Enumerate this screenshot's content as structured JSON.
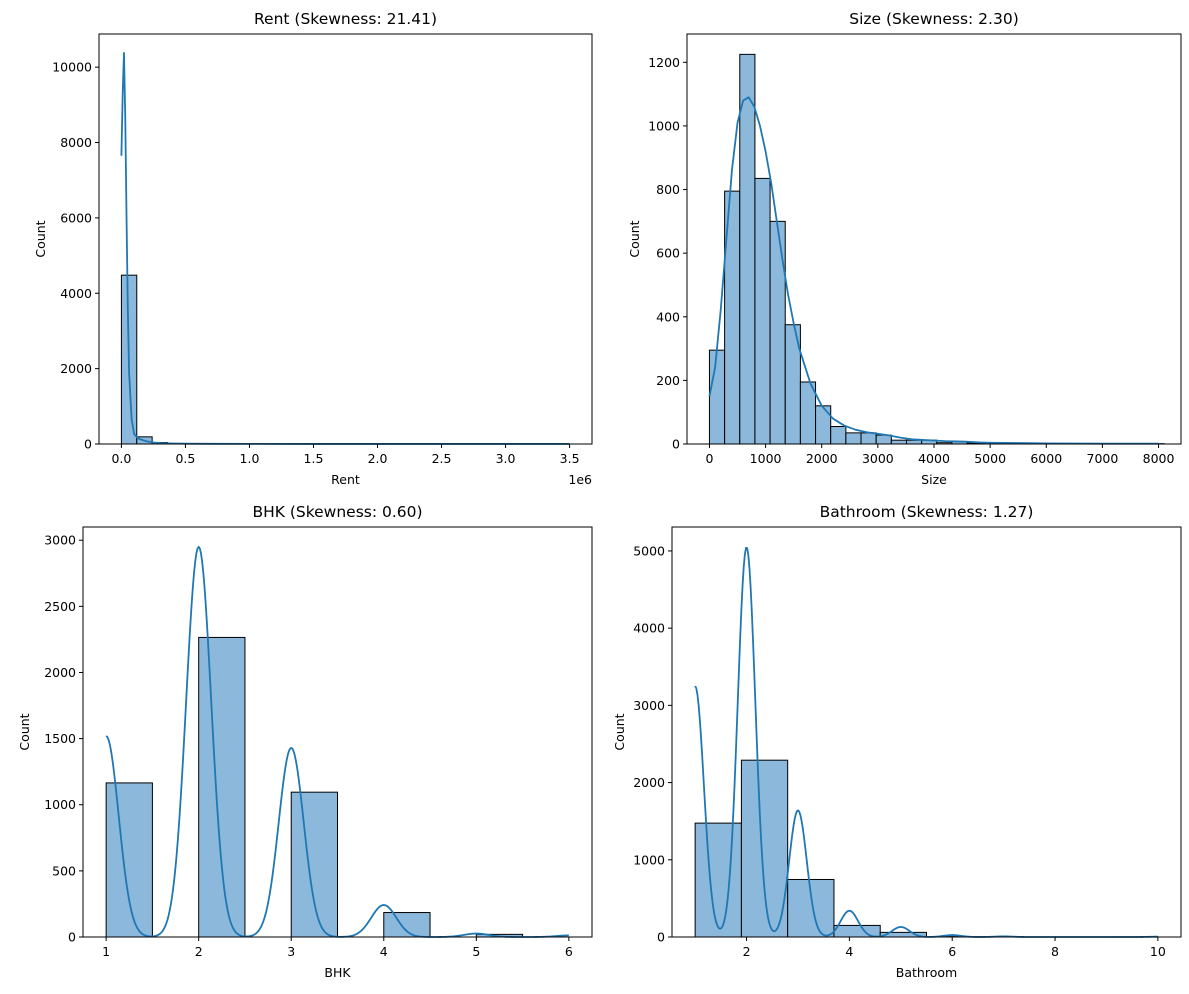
{
  "figure": {
    "description_bg": "#ffffff",
    "bar_fill": "#8bb8db",
    "bar_edge": "#000000",
    "kde_color": "#1f77b4"
  },
  "chart_data": [
    {
      "type": "bar",
      "name": "rent",
      "title": "Rent (Skewness: 21.41)",
      "xlabel": "Rent",
      "ylabel": "Count",
      "offset_text": "1e6",
      "xlim": [
        -0.175,
        3.675
      ],
      "ylim": [
        0,
        10880
      ],
      "xticks": [
        0,
        0.5,
        1.0,
        1.5,
        2.0,
        2.5,
        3.0,
        3.5
      ],
      "xtick_labels": [
        "0.0",
        "0.5",
        "1.0",
        "1.5",
        "2.0",
        "2.5",
        "3.0",
        "3.5"
      ],
      "yticks": [
        0,
        2000,
        4000,
        6000,
        8000,
        10000
      ],
      "ytick_labels": [
        "0",
        "2000",
        "4000",
        "6000",
        "8000",
        "10000"
      ],
      "bins": [
        {
          "x0": 0.0,
          "x1": 0.12,
          "count": 4480
        },
        {
          "x0": 0.12,
          "x1": 0.24,
          "count": 190
        },
        {
          "x0": 0.24,
          "x1": 0.36,
          "count": 40
        },
        {
          "x0": 0.36,
          "x1": 0.48,
          "count": 12
        },
        {
          "x0": 0.48,
          "x1": 0.6,
          "count": 6
        }
      ],
      "kde": {
        "x": [
          0.0,
          0.01,
          0.02,
          0.03,
          0.04,
          0.05,
          0.06,
          0.08,
          0.1,
          0.13,
          0.16,
          0.2,
          0.25,
          0.3,
          0.4,
          0.5,
          0.7,
          1.0,
          1.5,
          2.0,
          2.5,
          3.0,
          3.5
        ],
        "y": [
          7650,
          9300,
          10380,
          8700,
          6000,
          3600,
          1900,
          650,
          260,
          150,
          110,
          70,
          40,
          25,
          14,
          8,
          5,
          3,
          2,
          1,
          1,
          1,
          1
        ]
      }
    },
    {
      "type": "bar",
      "name": "size",
      "title": "Size (Skewness: 2.30)",
      "xlabel": "Size",
      "ylabel": "Count",
      "xlim": [
        -400,
        8400
      ],
      "ylim": [
        0,
        1289
      ],
      "xticks": [
        0,
        1000,
        2000,
        3000,
        4000,
        5000,
        6000,
        7000,
        8000
      ],
      "xtick_labels": [
        "0",
        "1000",
        "2000",
        "3000",
        "4000",
        "5000",
        "6000",
        "7000",
        "8000"
      ],
      "yticks": [
        0,
        200,
        400,
        600,
        800,
        1000,
        1200
      ],
      "ytick_labels": [
        "0",
        "200",
        "400",
        "600",
        "800",
        "1000",
        "1200"
      ],
      "bins": [
        {
          "x0": 0,
          "x1": 270,
          "count": 295
        },
        {
          "x0": 270,
          "x1": 540,
          "count": 795
        },
        {
          "x0": 540,
          "x1": 810,
          "count": 1225
        },
        {
          "x0": 810,
          "x1": 1080,
          "count": 835
        },
        {
          "x0": 1080,
          "x1": 1350,
          "count": 700
        },
        {
          "x0": 1350,
          "x1": 1620,
          "count": 375
        },
        {
          "x0": 1620,
          "x1": 1890,
          "count": 195
        },
        {
          "x0": 1890,
          "x1": 2160,
          "count": 120
        },
        {
          "x0": 2160,
          "x1": 2430,
          "count": 55
        },
        {
          "x0": 2430,
          "x1": 2700,
          "count": 35
        },
        {
          "x0": 2700,
          "x1": 2970,
          "count": 35
        },
        {
          "x0": 2970,
          "x1": 3240,
          "count": 28
        },
        {
          "x0": 3240,
          "x1": 3510,
          "count": 12
        },
        {
          "x0": 3510,
          "x1": 3780,
          "count": 12
        },
        {
          "x0": 3780,
          "x1": 4050,
          "count": 12
        },
        {
          "x0": 4050,
          "x1": 4320,
          "count": 4
        },
        {
          "x0": 4320,
          "x1": 4590,
          "count": 8
        },
        {
          "x0": 4590,
          "x1": 4860,
          "count": 3
        },
        {
          "x0": 4860,
          "x1": 5130,
          "count": 2
        },
        {
          "x0": 5130,
          "x1": 5400,
          "count": 2
        },
        {
          "x0": 5400,
          "x1": 5670,
          "count": 2
        },
        {
          "x0": 5670,
          "x1": 5940,
          "count": 1
        },
        {
          "x0": 5940,
          "x1": 6210,
          "count": 1
        },
        {
          "x0": 6210,
          "x1": 6480,
          "count": 1
        },
        {
          "x0": 6480,
          "x1": 6750,
          "count": 1
        },
        {
          "x0": 6750,
          "x1": 7020,
          "count": 1
        },
        {
          "x0": 7020,
          "x1": 7290,
          "count": 1
        },
        {
          "x0": 7290,
          "x1": 7560,
          "count": 1
        },
        {
          "x0": 7560,
          "x1": 7830,
          "count": 1
        },
        {
          "x0": 7830,
          "x1": 8100,
          "count": 1
        }
      ],
      "kde": {
        "x": [
          0,
          100,
          200,
          300,
          400,
          500,
          600,
          700,
          800,
          900,
          1000,
          1100,
          1200,
          1300,
          1400,
          1500,
          1600,
          1800,
          2000,
          2200,
          2400,
          2600,
          2800,
          3000,
          3200,
          3400,
          3600,
          3800,
          4000,
          4200,
          4400,
          4600,
          4800,
          5000,
          5500,
          6000,
          7000,
          8000
        ],
        "y": [
          150,
          240,
          420,
          640,
          860,
          1010,
          1080,
          1090,
          1060,
          1000,
          920,
          820,
          700,
          580,
          470,
          380,
          300,
          190,
          120,
          80,
          58,
          45,
          37,
          32,
          27,
          20,
          15,
          13,
          11,
          9,
          8,
          7,
          5,
          4,
          3,
          2,
          1,
          1
        ]
      }
    },
    {
      "type": "bar",
      "name": "bhk",
      "title": "BHK (Skewness: 0.60)",
      "xlabel": "BHK",
      "ylabel": "Count",
      "xlim": [
        0.75,
        6.25
      ],
      "ylim": [
        0,
        3100
      ],
      "xticks": [
        1,
        2,
        3,
        4,
        5,
        6
      ],
      "xtick_labels": [
        "1",
        "2",
        "3",
        "4",
        "5",
        "6"
      ],
      "yticks": [
        0,
        500,
        1000,
        1500,
        2000,
        2500,
        3000
      ],
      "ytick_labels": [
        "0",
        "500",
        "1000",
        "1500",
        "2000",
        "2500",
        "3000"
      ],
      "bins": [
        {
          "x0": 1.0,
          "x1": 1.5,
          "count": 1165
        },
        {
          "x0": 1.5,
          "x1": 2.0,
          "count": 0
        },
        {
          "x0": 2.0,
          "x1": 2.5,
          "count": 2265
        },
        {
          "x0": 2.5,
          "x1": 3.0,
          "count": 0
        },
        {
          "x0": 3.0,
          "x1": 3.5,
          "count": 1095
        },
        {
          "x0": 3.5,
          "x1": 4.0,
          "count": 0
        },
        {
          "x0": 4.0,
          "x1": 4.5,
          "count": 185
        },
        {
          "x0": 4.5,
          "x1": 5.0,
          "count": 0
        },
        {
          "x0": 5.0,
          "x1": 5.5,
          "count": 20
        },
        {
          "x0": 5.5,
          "x1": 6.0,
          "count": 0
        }
      ],
      "kde": {
        "peaks": [
          {
            "mu": 1.0,
            "sigma": 0.135,
            "height": 1520
          },
          {
            "mu": 2.0,
            "sigma": 0.135,
            "height": 2950
          },
          {
            "mu": 3.0,
            "sigma": 0.135,
            "height": 1430
          },
          {
            "mu": 4.0,
            "sigma": 0.135,
            "height": 242
          },
          {
            "mu": 5.0,
            "sigma": 0.135,
            "height": 26
          },
          {
            "mu": 6.0,
            "sigma": 0.135,
            "height": 12
          }
        ],
        "x_range": [
          1.0,
          6.0
        ]
      }
    },
    {
      "type": "bar",
      "name": "bathroom",
      "title": "Bathroom (Skewness: 1.27)",
      "xlabel": "Bathroom",
      "ylabel": "Count",
      "xlim": [
        0.55,
        10.45
      ],
      "ylim": [
        0,
        5310
      ],
      "xticks": [
        2,
        4,
        6,
        8,
        10
      ],
      "xtick_labels": [
        "2",
        "4",
        "6",
        "8",
        "10"
      ],
      "yticks": [
        0,
        1000,
        2000,
        3000,
        4000,
        5000
      ],
      "ytick_labels": [
        "0",
        "1000",
        "2000",
        "3000",
        "4000",
        "5000"
      ],
      "bins": [
        {
          "x0": 1.0,
          "x1": 1.9,
          "count": 1475
        },
        {
          "x0": 1.9,
          "x1": 2.8,
          "count": 2290
        },
        {
          "x0": 2.8,
          "x1": 3.7,
          "count": 745
        },
        {
          "x0": 3.7,
          "x1": 4.6,
          "count": 150
        },
        {
          "x0": 4.6,
          "x1": 5.5,
          "count": 60
        },
        {
          "x0": 5.5,
          "x1": 6.4,
          "count": 5
        },
        {
          "x0": 6.4,
          "x1": 7.3,
          "count": 3
        },
        {
          "x0": 7.3,
          "x1": 8.2,
          "count": 0
        },
        {
          "x0": 8.2,
          "x1": 9.1,
          "count": 0
        },
        {
          "x0": 9.1,
          "x1": 10.0,
          "count": 1
        }
      ],
      "kde": {
        "peaks": [
          {
            "mu": 1.0,
            "sigma": 0.17,
            "height": 3250
          },
          {
            "mu": 2.0,
            "sigma": 0.17,
            "height": 5050
          },
          {
            "mu": 3.0,
            "sigma": 0.17,
            "height": 1640
          },
          {
            "mu": 4.0,
            "sigma": 0.17,
            "height": 340
          },
          {
            "mu": 5.0,
            "sigma": 0.17,
            "height": 130
          },
          {
            "mu": 6.0,
            "sigma": 0.17,
            "height": 25
          },
          {
            "mu": 7.0,
            "sigma": 0.17,
            "height": 8
          },
          {
            "mu": 10.0,
            "sigma": 0.17,
            "height": 4
          }
        ],
        "x_range": [
          1.0,
          10.0
        ]
      }
    }
  ]
}
